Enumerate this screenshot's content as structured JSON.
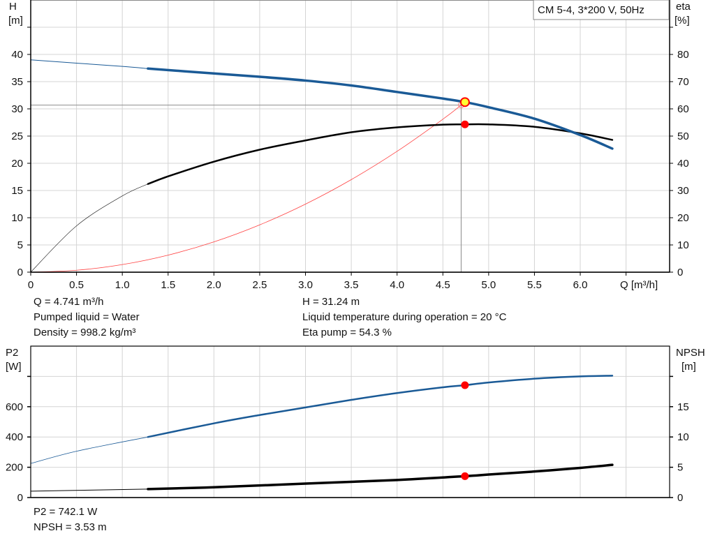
{
  "chart_data": [
    {
      "type": "line",
      "legend_box": "CM 5-4, 3*200 V, 50Hz",
      "xlabel": "Q [m³/h]",
      "xlim": [
        0,
        7
      ],
      "xticks": [
        "0",
        "0.5",
        "1.0",
        "1.5",
        "2.0",
        "2.5",
        "3.0",
        "3.5",
        "4.0",
        "4.5",
        "5.0",
        "5.5",
        "6.0"
      ],
      "xtick_values": [
        0,
        0.5,
        1.0,
        1.5,
        2.0,
        2.5,
        3.0,
        3.5,
        4.0,
        4.5,
        5.0,
        5.5,
        6.0
      ],
      "y_left": {
        "label_line1": "H",
        "label_line2": "[m]",
        "lim": [
          0,
          50
        ],
        "ticks": [
          0,
          5,
          10,
          15,
          20,
          25,
          30,
          35,
          40
        ]
      },
      "y_right": {
        "label_line1": "eta",
        "label_line2": "[%]",
        "lim": [
          0,
          100
        ],
        "ticks": [
          0,
          10,
          20,
          30,
          40,
          50,
          60,
          70,
          80
        ]
      },
      "grid": true,
      "recommended_from_q": 1.28,
      "series": [
        {
          "id": "H",
          "axis": "left",
          "color": "#1a5a96",
          "x": [
            0,
            0.5,
            1.0,
            1.28,
            2.0,
            2.5,
            3.0,
            3.5,
            4.0,
            4.5,
            4.741,
            5.0,
            5.5,
            6.0,
            6.35
          ],
          "y": [
            39,
            38.4,
            37.8,
            37.4,
            36.5,
            35.9,
            35.2,
            34.3,
            33.1,
            31.9,
            31.24,
            30.3,
            28.2,
            25.2,
            22.7
          ]
        },
        {
          "id": "eta",
          "axis": "right",
          "color": "#000000",
          "x": [
            0,
            0.5,
            1.0,
            1.28,
            1.5,
            2.0,
            2.5,
            3.0,
            3.5,
            4.0,
            4.5,
            4.741,
            5.0,
            5.5,
            6.0,
            6.35
          ],
          "y": [
            0,
            17,
            28,
            32.4,
            35.2,
            40.6,
            45,
            48.4,
            51.4,
            53.2,
            54.2,
            54.3,
            54.3,
            53.4,
            51,
            48.6
          ]
        },
        {
          "id": "system",
          "axis": "left",
          "color": "#ff4040",
          "x": [
            0,
            0.5,
            1.0,
            1.5,
            2.0,
            2.5,
            3.0,
            3.5,
            4.0,
            4.5,
            4.7
          ],
          "y": [
            0,
            0.35,
            1.39,
            3.13,
            5.56,
            8.69,
            12.5,
            17.0,
            22.2,
            28.1,
            30.7
          ]
        }
      ],
      "operating_point": {
        "q": 4.741,
        "h": 31.24,
        "eta": 54.3,
        "guide_q": 4.7,
        "guide_h": 30.7
      }
    },
    {
      "type": "line",
      "xlim": [
        0,
        7
      ],
      "y_left": {
        "label_line1": "P2",
        "label_line2": "[W]",
        "lim": [
          0,
          1000
        ],
        "ticks": [
          0,
          200,
          400,
          600,
          800
        ],
        "labeled": [
          0,
          200,
          400,
          600
        ]
      },
      "y_right": {
        "label_line1": "NPSH",
        "label_line2": "[m]",
        "lim": [
          0,
          25
        ],
        "ticks": [
          0,
          5,
          10,
          15,
          20
        ],
        "labeled": [
          0,
          5,
          10,
          15
        ]
      },
      "grid": true,
      "recommended_from_q": 1.28,
      "series": [
        {
          "id": "P2",
          "axis": "left",
          "color": "#1a5a96",
          "x": [
            0,
            0.5,
            1.28,
            2.0,
            2.5,
            3.0,
            3.5,
            4.0,
            4.5,
            4.741,
            5.0,
            5.5,
            6.0,
            6.35
          ],
          "y": [
            225,
            306,
            400,
            490,
            545,
            595,
            645,
            690,
            728,
            742.1,
            760,
            785,
            800,
            805
          ]
        },
        {
          "id": "NPSH",
          "axis": "right",
          "color": "#000000",
          "x": [
            0,
            1.28,
            2.0,
            3.0,
            4.0,
            4.741,
            5.0,
            5.5,
            6.0,
            6.35
          ],
          "y": [
            1.05,
            1.4,
            1.7,
            2.3,
            2.9,
            3.53,
            3.8,
            4.3,
            4.9,
            5.4
          ]
        }
      ],
      "operating_point": {
        "q": 4.741,
        "p2": 742.1,
        "npsh": 3.53
      }
    }
  ],
  "info_top": {
    "q": "Q = 4.741 m³/h",
    "liquid": "Pumped liquid = Water",
    "density": "Density = 998.2 kg/m³",
    "h": "H = 31.24 m",
    "temp": "Liquid temperature during operation = 20 °C",
    "eta": "Eta pump = 54.3 %"
  },
  "info_bottom": {
    "p2": "P2 = 742.1 W",
    "npsh": "NPSH = 3.53 m"
  }
}
